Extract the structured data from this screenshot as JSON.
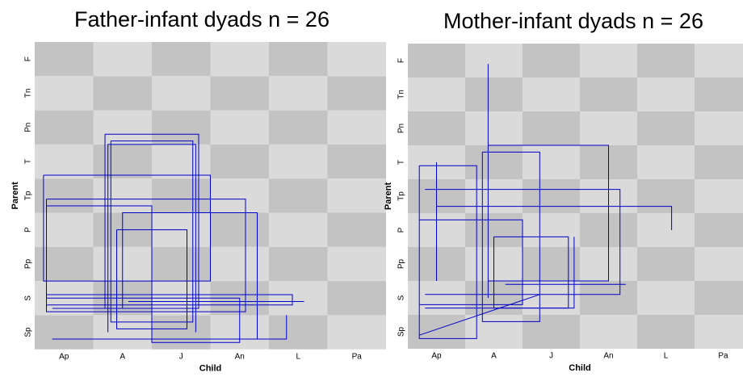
{
  "chart_data": [
    {
      "type": "state_space_grid",
      "title": "Father-infant dyads  n = 26",
      "x_label": "Child",
      "y_label": "Parent",
      "categories": [
        "Ap",
        "A",
        "J",
        "An",
        "L",
        "Pa"
      ],
      "y_categories": [
        "Sp",
        "S",
        "Pp",
        "P",
        "Tp",
        "T",
        "Pn",
        "Tn",
        "F"
      ],
      "color": "#0000cc",
      "trajectories": [
        {
          "x": [
            1.2,
            2.8,
            2.8,
            1.2,
            1.2
          ],
          "y": [
            6.3,
            6.3,
            1.2,
            1.2,
            6.3
          ]
        },
        {
          "x": [
            1.3,
            2.7,
            2.7,
            1.3,
            1.3
          ],
          "y": [
            6.1,
            6.1,
            0.8,
            0.8,
            6.1
          ]
        },
        {
          "x": [
            0.2,
            3.6,
            3.6,
            0.2,
            0.2
          ],
          "y": [
            4.4,
            4.4,
            1.1,
            1.1,
            4.4
          ]
        },
        {
          "x": [
            0.3,
            1.5,
            1.5,
            3.8,
            3.8,
            0.3
          ],
          "y": [
            1.2,
            1.2,
            4.0,
            4.0,
            0.3,
            0.3
          ]
        },
        {
          "x": [
            0.2,
            4.4,
            4.4,
            0.2
          ],
          "y": [
            1.6,
            1.6,
            1.3,
            1.3
          ]
        },
        {
          "x": [
            1.4,
            2.6,
            2.6,
            1.4,
            1.4
          ],
          "y": [
            3.5,
            3.5,
            0.6,
            0.6,
            3.5
          ]
        },
        {
          "x": [
            0.2,
            2.0,
            2.0,
            3.5,
            3.5,
            0.2,
            0.2
          ],
          "y": [
            4.2,
            4.2,
            0.2,
            0.2,
            1.5,
            1.5,
            4.2
          ]
        },
        {
          "x": [
            1.6,
            4.6
          ],
          "y": [
            1.4,
            1.4
          ]
        },
        {
          "x": [
            0.3,
            4.3,
            4.3
          ],
          "y": [
            0.3,
            0.3,
            1.0
          ]
        },
        {
          "x": [
            1.25,
            1.25,
            2.75,
            2.75
          ],
          "y": [
            0.5,
            6.0,
            6.0,
            0.5
          ]
        },
        {
          "x": [
            0.15,
            3.0,
            3.0,
            0.15,
            0.15
          ],
          "y": [
            5.1,
            5.1,
            2.0,
            2.0,
            5.1
          ]
        }
      ]
    },
    {
      "type": "state_space_grid",
      "title": "Mother-infant dyads  n = 26",
      "x_label": "Child",
      "y_label": "Parent",
      "categories": [
        "Ap",
        "A",
        "J",
        "An",
        "L",
        "Pa"
      ],
      "y_categories": [
        "Sp",
        "S",
        "Pp",
        "P",
        "Tp",
        "T",
        "Pn",
        "Tn",
        "F"
      ],
      "color": "#0000cc",
      "trajectories": [
        {
          "x": [
            1.3,
            2.3,
            2.3,
            1.3,
            1.3
          ],
          "y": [
            5.8,
            5.8,
            0.8,
            0.8,
            5.8
          ]
        },
        {
          "x": [
            1.4,
            1.4
          ],
          "y": [
            1.5,
            8.4
          ]
        },
        {
          "x": [
            0.2,
            2.0,
            2.0,
            0.2
          ],
          "y": [
            1.3,
            1.3,
            3.8,
            3.8
          ]
        },
        {
          "x": [
            0.5,
            4.6,
            4.6
          ],
          "y": [
            4.2,
            4.2,
            3.5
          ]
        },
        {
          "x": [
            0.3,
            3.7,
            3.7,
            0.3
          ],
          "y": [
            1.6,
            1.6,
            4.7,
            4.7
          ]
        },
        {
          "x": [
            0.2,
            1.2,
            1.2,
            0.2,
            0.2
          ],
          "y": [
            5.4,
            5.4,
            0.3,
            0.3,
            5.4
          ]
        },
        {
          "x": [
            0.3,
            2.9,
            2.9
          ],
          "y": [
            1.2,
            1.2,
            3.3
          ]
        },
        {
          "x": [
            1.4,
            3.5,
            3.5,
            1.4
          ],
          "y": [
            6.0,
            6.0,
            2.0,
            2.0
          ]
        },
        {
          "x": [
            0.2,
            2.3
          ],
          "y": [
            0.4,
            1.6
          ]
        },
        {
          "x": [
            1.5,
            2.8,
            2.8,
            1.5,
            1.5
          ],
          "y": [
            3.3,
            3.3,
            1.2,
            1.2,
            3.3
          ]
        },
        {
          "x": [
            1.7,
            3.8
          ],
          "y": [
            1.9,
            1.9
          ]
        },
        {
          "x": [
            0.5,
            0.5
          ],
          "y": [
            2.0,
            5.5
          ]
        }
      ]
    }
  ]
}
